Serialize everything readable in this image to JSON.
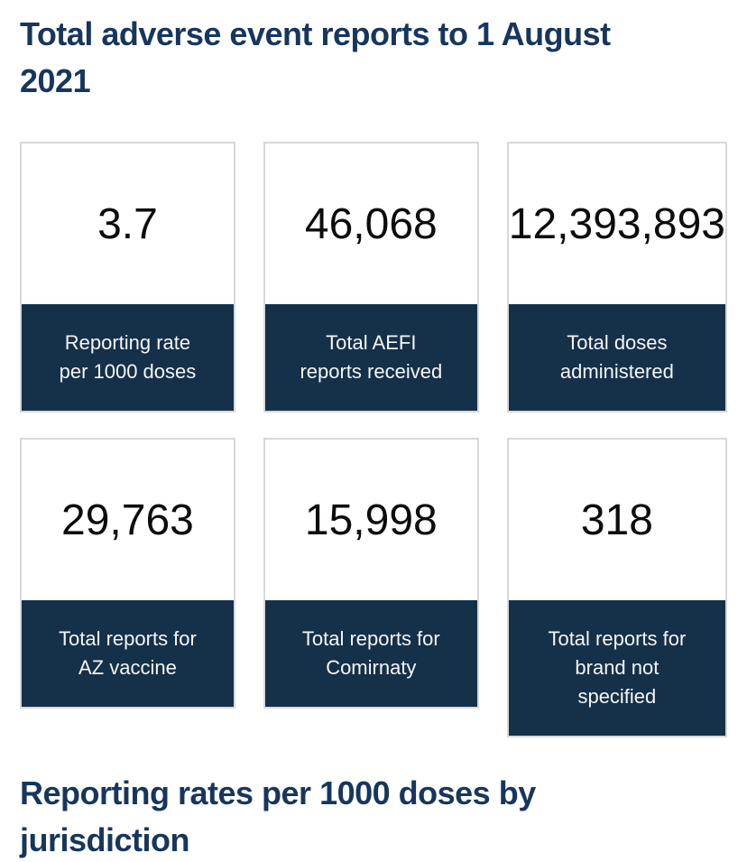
{
  "headings": {
    "top": "Total adverse event reports to 1 August\n2021",
    "bottom": "Reporting rates per 1000 doses by\njurisdiction"
  },
  "cards": [
    {
      "value": "3.7",
      "label": "Reporting rate\nper 1000 doses"
    },
    {
      "value": "46,068",
      "label": "Total AEFI\nreports received"
    },
    {
      "value": "12,393,893",
      "label": "Total doses\nadministered"
    },
    {
      "value": "29,763",
      "label": "Total reports for\nAZ vaccine"
    },
    {
      "value": "15,998",
      "label": "Total reports for\nComirnaty"
    },
    {
      "value": "318",
      "label": "Total reports for\nbrand not\nspecified"
    }
  ],
  "colors": {
    "heading_navy": "#17365d",
    "card_footer_navy": "#153049",
    "card_border_gray": "#d6d8da",
    "number_black": "#0c0c0c",
    "label_white": "#f4f6f7"
  },
  "chart_data": {
    "type": "table",
    "title": "Total adverse event reports to 1 August 2021",
    "categories": [
      "Reporting rate per 1000 doses",
      "Total AEFI reports received",
      "Total doses administered",
      "Total reports for AZ vaccine",
      "Total reports for Comirnaty",
      "Total reports for brand not specified"
    ],
    "values": [
      3.7,
      46068,
      12393893,
      29763,
      15998,
      318
    ]
  }
}
